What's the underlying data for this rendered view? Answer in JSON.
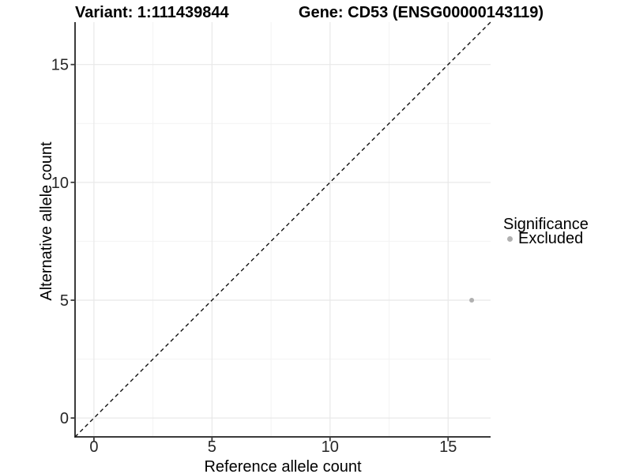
{
  "chart_data": {
    "type": "scatter",
    "title_left": "Variant: 1:111439844",
    "title_right": "Gene: CD53 (ENSG00000143119)",
    "xlabel": "Reference allele count",
    "ylabel": "Alternative allele count",
    "xlim": [
      -0.8,
      16.8
    ],
    "ylim": [
      -0.8,
      16.8
    ],
    "x_ticks": [
      0,
      5,
      10,
      15
    ],
    "y_ticks": [
      0,
      5,
      10,
      15
    ],
    "minor_grid_interval": 2.5,
    "grid": "major and minor, light gray on white panel",
    "reference_line": {
      "kind": "identity y=x",
      "style": "dashed",
      "color": "#111111"
    },
    "legend": {
      "title": "Significance",
      "position": "right",
      "items": [
        {
          "label": "Excluded",
          "color": "#b0b0b0"
        }
      ]
    },
    "series": [
      {
        "name": "Excluded",
        "color": "#b0b0b0",
        "points": [
          [
            16,
            5
          ]
        ]
      }
    ],
    "colors": {
      "axis_line": "#3b3b3b",
      "grid_major": "#e8e8e8",
      "grid_minor": "#f3f3f3",
      "tick_label": "#262626"
    }
  }
}
